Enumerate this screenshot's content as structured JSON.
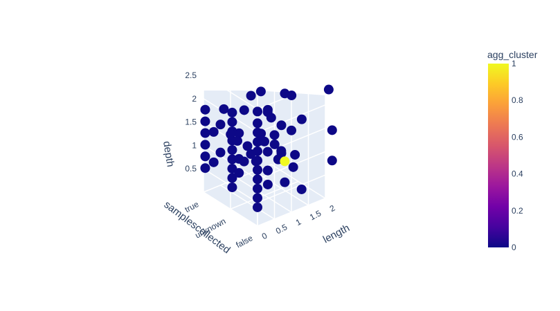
{
  "chart_data": {
    "type": "scatter3d",
    "axes": {
      "x": {
        "label": "length",
        "ticks": [
          "0",
          "0.5",
          "1",
          "1.5",
          "2"
        ],
        "range": [
          0,
          2.3
        ]
      },
      "y": {
        "label": "samplescollected",
        "ticks": [
          "false",
          "unknown",
          "true"
        ]
      },
      "z": {
        "label": "depth",
        "ticks": [
          "0.5",
          "1",
          "1.5",
          "2",
          "2.5"
        ],
        "range": [
          0,
          2.9
        ]
      }
    },
    "colorbar": {
      "title": "agg_cluster",
      "ticks": [
        "0",
        "0.2",
        "0.4",
        "0.6",
        "0.8",
        "1"
      ],
      "range": [
        0,
        1
      ],
      "colors": [
        "#0d0887",
        "#46039f",
        "#7201a8",
        "#9c179e",
        "#bd3786",
        "#d8576b",
        "#ed7953",
        "#fb9f3a",
        "#fdca26",
        "#f0f921"
      ]
    },
    "grid": true,
    "points": [
      {
        "x": 0.1,
        "y": "false",
        "z": 2.85,
        "c": 0
      },
      {
        "x": 0.0,
        "y": "false",
        "z": 2.45,
        "c": 0
      },
      {
        "x": 0.0,
        "y": "false",
        "z": 2.2,
        "c": 0
      },
      {
        "x": 0.0,
        "y": "false",
        "z": 2.0,
        "c": 0
      },
      {
        "x": 0.0,
        "y": "false",
        "z": 1.8,
        "c": 0
      },
      {
        "x": 0.0,
        "y": "false",
        "z": 1.6,
        "c": 0
      },
      {
        "x": 0.0,
        "y": "false",
        "z": 1.4,
        "c": 0
      },
      {
        "x": 0.0,
        "y": "false",
        "z": 1.2,
        "c": 0
      },
      {
        "x": 0.0,
        "y": "false",
        "z": 1.0,
        "c": 0
      },
      {
        "x": 0.0,
        "y": "false",
        "z": 0.8,
        "c": 0
      },
      {
        "x": 0.0,
        "y": "false",
        "z": 0.6,
        "c": 0
      },
      {
        "x": 0.0,
        "y": "false",
        "z": 0.4,
        "c": 0
      },
      {
        "x": 0.05,
        "y": "unknown",
        "z": 2.05,
        "c": 0
      },
      {
        "x": 0.05,
        "y": "unknown",
        "z": 1.85,
        "c": 0
      },
      {
        "x": 0.05,
        "y": "unknown",
        "z": 1.65,
        "c": 0
      },
      {
        "x": 0.05,
        "y": "unknown",
        "z": 1.45,
        "c": 0
      },
      {
        "x": 0.05,
        "y": "unknown",
        "z": 1.25,
        "c": 0
      },
      {
        "x": 0.05,
        "y": "unknown",
        "z": 1.05,
        "c": 0
      },
      {
        "x": 0.05,
        "y": "unknown",
        "z": 0.85,
        "c": 0
      },
      {
        "x": 0.05,
        "y": "unknown",
        "z": 0.65,
        "c": 0
      },
      {
        "x": 0.05,
        "y": "unknown",
        "z": 0.45,
        "c": 0
      },
      {
        "x": 0.05,
        "y": "true",
        "z": 1.75,
        "c": 0
      },
      {
        "x": 0.05,
        "y": "true",
        "z": 1.5,
        "c": 0
      },
      {
        "x": 0.05,
        "y": "true",
        "z": 1.25,
        "c": 0
      },
      {
        "x": 0.05,
        "y": "true",
        "z": 1.0,
        "c": 0
      },
      {
        "x": 0.05,
        "y": "true",
        "z": 0.75,
        "c": 0
      },
      {
        "x": 0.05,
        "y": "true",
        "z": 0.5,
        "c": 0
      },
      {
        "x": 0.3,
        "y": "false",
        "z": 2.35,
        "c": 0
      },
      {
        "x": 0.3,
        "y": "false",
        "z": 1.5,
        "c": 0
      },
      {
        "x": 0.3,
        "y": "false",
        "z": 1.1,
        "c": 0
      },
      {
        "x": 0.25,
        "y": "unknown",
        "z": 1.55,
        "c": 0
      },
      {
        "x": 0.25,
        "y": "unknown",
        "z": 1.0,
        "c": 0
      },
      {
        "x": 0.25,
        "y": "unknown",
        "z": 0.7,
        "c": 0
      },
      {
        "x": 0.3,
        "y": "true",
        "z": 1.2,
        "c": 0
      },
      {
        "x": 0.3,
        "y": "true",
        "z": 0.55,
        "c": 0
      },
      {
        "x": 0.4,
        "y": "unknown",
        "z": 0.9,
        "c": 0
      },
      {
        "x": 0.5,
        "y": "false",
        "z": 1.8,
        "c": 0
      },
      {
        "x": 0.5,
        "y": "unknown",
        "z": 1.2,
        "c": 0
      },
      {
        "x": 0.5,
        "y": "true",
        "z": 1.3,
        "c": 0
      },
      {
        "x": 0.5,
        "y": "true",
        "z": 0.7,
        "c": 0
      },
      {
        "x": 0.6,
        "y": "unknown",
        "z": 1.0,
        "c": 0
      },
      {
        "x": 0.6,
        "y": "true",
        "z": 1.6,
        "c": 0
      },
      {
        "x": 0.7,
        "y": "false",
        "z": 1.4,
        "c": 0
      },
      {
        "x": 0.75,
        "y": "unknown",
        "z": 0.8,
        "c": 0
      },
      {
        "x": 0.8,
        "y": "true",
        "z": 1.0,
        "c": 0
      },
      {
        "x": 0.9,
        "y": "unknown",
        "z": 1.35,
        "c": 0
      },
      {
        "x": 1.0,
        "y": "unknown",
        "z": 1.15,
        "c": 0
      },
      {
        "x": 1.0,
        "y": "true",
        "z": 0.8,
        "c": 0
      },
      {
        "x": 1.0,
        "y": "false",
        "z": 1.75,
        "c": 0
      },
      {
        "x": 1.1,
        "y": "unknown",
        "z": 1.8,
        "c": 0
      },
      {
        "x": 1.1,
        "y": "unknown",
        "z": 0.5,
        "c": 0
      },
      {
        "x": 1.1,
        "y": "unknown",
        "z": 0.2,
        "c": 0
      },
      {
        "x": 1.2,
        "y": "unknown",
        "z": 1.6,
        "c": 0
      },
      {
        "x": 1.2,
        "y": "true",
        "z": 1.4,
        "c": 0
      },
      {
        "x": 1.3,
        "y": "unknown",
        "z": 1.0,
        "c": 0
      },
      {
        "x": 1.3,
        "y": "false",
        "z": 0.4,
        "c": 0
      },
      {
        "x": 1.4,
        "y": "true",
        "z": 1.65,
        "c": 0
      },
      {
        "x": 1.5,
        "y": "unknown",
        "z": 0.75,
        "c": 0
      },
      {
        "x": 1.5,
        "y": "unknown",
        "z": 1.35,
        "c": 0
      },
      {
        "x": 1.6,
        "y": "unknown",
        "z": 0.1,
        "c": 0
      },
      {
        "x": 1.6,
        "y": "unknown",
        "z": 2.0,
        "c": 0
      },
      {
        "x": 1.7,
        "y": "true",
        "z": 0.6,
        "c": 0
      },
      {
        "x": 1.8,
        "y": "unknown",
        "z": 1.9,
        "c": 0
      },
      {
        "x": 1.85,
        "y": "unknown",
        "z": 0.35,
        "c": 0
      },
      {
        "x": 1.9,
        "y": "unknown",
        "z": 0.6,
        "c": 0
      },
      {
        "x": 2.1,
        "y": "false",
        "z": 2.3,
        "c": 0
      },
      {
        "x": 2.2,
        "y": "false",
        "z": 1.4,
        "c": 0
      },
      {
        "x": 2.2,
        "y": "false",
        "z": 0.75,
        "c": 0
      },
      {
        "x": 2.1,
        "y": "unknown",
        "z": 1.3,
        "c": 0
      },
      {
        "x": 2.2,
        "y": "true",
        "z": 0.05,
        "c": 0
      },
      {
        "x": 1.6,
        "y": "unknown",
        "z": 0.55,
        "c": 1
      }
    ]
  }
}
